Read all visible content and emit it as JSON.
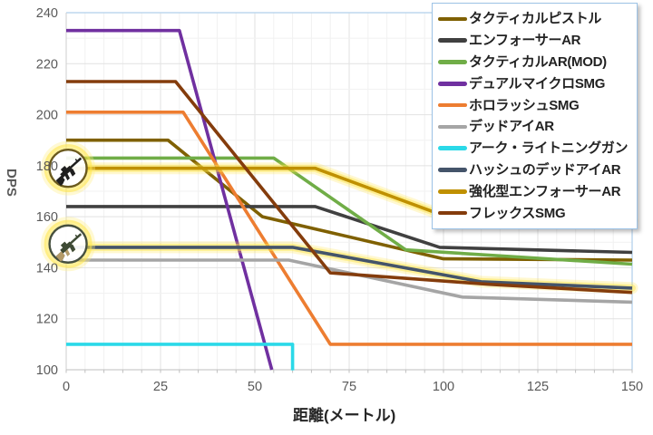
{
  "chart_data": {
    "type": "line",
    "title": "",
    "xlabel": "距離(メートル)",
    "ylabel": "DPS",
    "xlim": [
      0,
      150
    ],
    "ylim": [
      100,
      240
    ],
    "x_ticks": [
      0,
      25,
      50,
      75,
      100,
      125,
      150
    ],
    "y_ticks": [
      100,
      120,
      140,
      160,
      180,
      200,
      220,
      240
    ],
    "x_minor_step": 5,
    "y_minor_step": 10,
    "grid": true,
    "legend_position": "top-right",
    "colors": {
      "grid_major": "#E2E2E2",
      "grid_minor": "#F1F1F1",
      "axis": "#BFBFBF",
      "plot_border_top_right": "#BDD7EE",
      "tick_label": "#595959",
      "legend_border": "#9DC3E6",
      "highlight_glow": "#FFE545"
    },
    "series": [
      {
        "name": "タクティカルピストル",
        "color": "#7F6000",
        "glow": false,
        "points": [
          [
            0,
            190
          ],
          [
            27,
            190
          ],
          [
            52,
            160
          ],
          [
            100,
            143.5
          ],
          [
            150,
            143
          ]
        ]
      },
      {
        "name": "エンフォーサーAR",
        "color": "#404040",
        "glow": false,
        "points": [
          [
            0,
            164
          ],
          [
            66,
            164
          ],
          [
            99,
            148
          ],
          [
            150,
            146
          ]
        ]
      },
      {
        "name": "タクティカルAR(MOD)",
        "color": "#70AD47",
        "glow": false,
        "points": [
          [
            0,
            183
          ],
          [
            55,
            183
          ],
          [
            90,
            147
          ],
          [
            150,
            141.4
          ]
        ]
      },
      {
        "name": "デュアルマイクロSMG",
        "color": "#7030A0",
        "glow": false,
        "points": [
          [
            0,
            233
          ],
          [
            30,
            233
          ],
          [
            54.5,
            100
          ]
        ]
      },
      {
        "name": "ホロラッシュSMG",
        "color": "#ED7D31",
        "glow": false,
        "points": [
          [
            0,
            201
          ],
          [
            31,
            201
          ],
          [
            70,
            110
          ],
          [
            150,
            110
          ]
        ]
      },
      {
        "name": "デッドアイAR",
        "color": "#A5A5A5",
        "glow": false,
        "points": [
          [
            0,
            143
          ],
          [
            59,
            143
          ],
          [
            105,
            128.5
          ],
          [
            150,
            126.5
          ]
        ]
      },
      {
        "name": "アーク・ライトニングガン",
        "color": "#2BD9E8",
        "glow": false,
        "points": [
          [
            0,
            110
          ],
          [
            60,
            110
          ],
          [
            60,
            99.8
          ]
        ]
      },
      {
        "name": "ハッシュのデッドアイAR",
        "color": "#44546A",
        "glow": true,
        "points": [
          [
            0,
            148
          ],
          [
            60,
            148
          ],
          [
            110,
            134.5
          ],
          [
            150,
            132
          ]
        ]
      },
      {
        "name": "強化型エンフォーサーAR",
        "color": "#BF9000",
        "glow": true,
        "points": [
          [
            0,
            179
          ],
          [
            66,
            179
          ],
          [
            99,
            161
          ],
          [
            150,
            158.5
          ]
        ]
      },
      {
        "name": "フレックスSMG",
        "color": "#843C0C",
        "glow": false,
        "points": [
          [
            0,
            213
          ],
          [
            29,
            213
          ],
          [
            70,
            138
          ],
          [
            112,
            133.5
          ],
          [
            150,
            130.3
          ]
        ]
      }
    ],
    "highlight_markers": [
      {
        "series": "強化型エンフォーサーAR",
        "x": 0.5,
        "y": 179,
        "icon": "assault-rifle-icon",
        "ring": "#6B5A1E",
        "gun": "#1F1F1F",
        "gun2": null
      },
      {
        "series": "ハッシュのデッドアイAR",
        "x": 0.5,
        "y": 149.3,
        "icon": "camo-rifle-icon",
        "ring": "#46503F",
        "gun": "#3E4A34",
        "gun2": "#B39A68"
      }
    ]
  }
}
